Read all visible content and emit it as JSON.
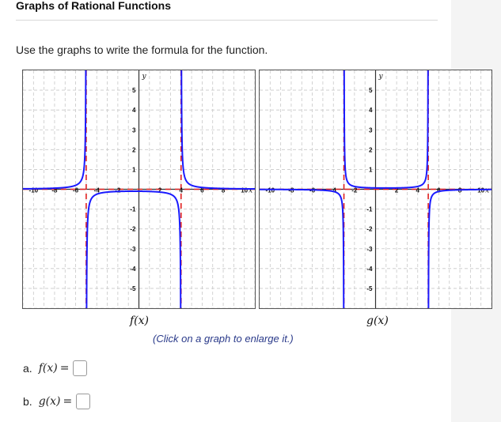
{
  "header": {
    "title": "Graphs of Rational Functions"
  },
  "prompt": "Use the graphs to write the formula for the function.",
  "graphs": [
    {
      "id": "f",
      "label": "f(x)",
      "axis_label_y": "y",
      "axis_label_x": "x",
      "x_ticks": [
        "-10",
        "-8",
        "-6",
        "-4",
        "-2",
        "2",
        "4",
        "6",
        "8",
        "10"
      ],
      "y_ticks": [
        "5",
        "4",
        "3",
        "2",
        "1",
        "-1",
        "-2",
        "-3",
        "-4",
        "-5"
      ],
      "accent": "#1a1aff",
      "asymptote_color": "#e02020"
    },
    {
      "id": "g",
      "label": "g(x)",
      "axis_label_y": "y",
      "axis_label_x": "x",
      "x_ticks": [
        "-10",
        "-8",
        "-6",
        "-4",
        "-2",
        "2",
        "4",
        "6",
        "8",
        "10"
      ],
      "y_ticks": [
        "5",
        "4",
        "3",
        "2",
        "1",
        "-1",
        "-2",
        "-3",
        "-4",
        "-5"
      ],
      "accent": "#1a1aff",
      "asymptote_color": "#e02020"
    }
  ],
  "chart_data": [
    {
      "type": "line",
      "xlim": [
        -11,
        11
      ],
      "ylim": [
        -6,
        6
      ],
      "vertical_asymptotes": [
        -5,
        4
      ],
      "horizontal_asymptotes": [
        0
      ],
      "grid": true
    },
    {
      "type": "line",
      "xlim": [
        -11,
        11
      ],
      "ylim": [
        -6,
        6
      ],
      "vertical_asymptotes": [
        -3,
        5
      ],
      "horizontal_asymptotes": [
        0
      ],
      "grid": true
    }
  ],
  "hint": "(Click on a graph to enlarge it.)",
  "answers": [
    {
      "letter": "a.",
      "lhs": "f(x)",
      "eq": "=",
      "value": ""
    },
    {
      "letter": "b.",
      "lhs": "g(x)",
      "eq": "=",
      "value": ""
    }
  ]
}
